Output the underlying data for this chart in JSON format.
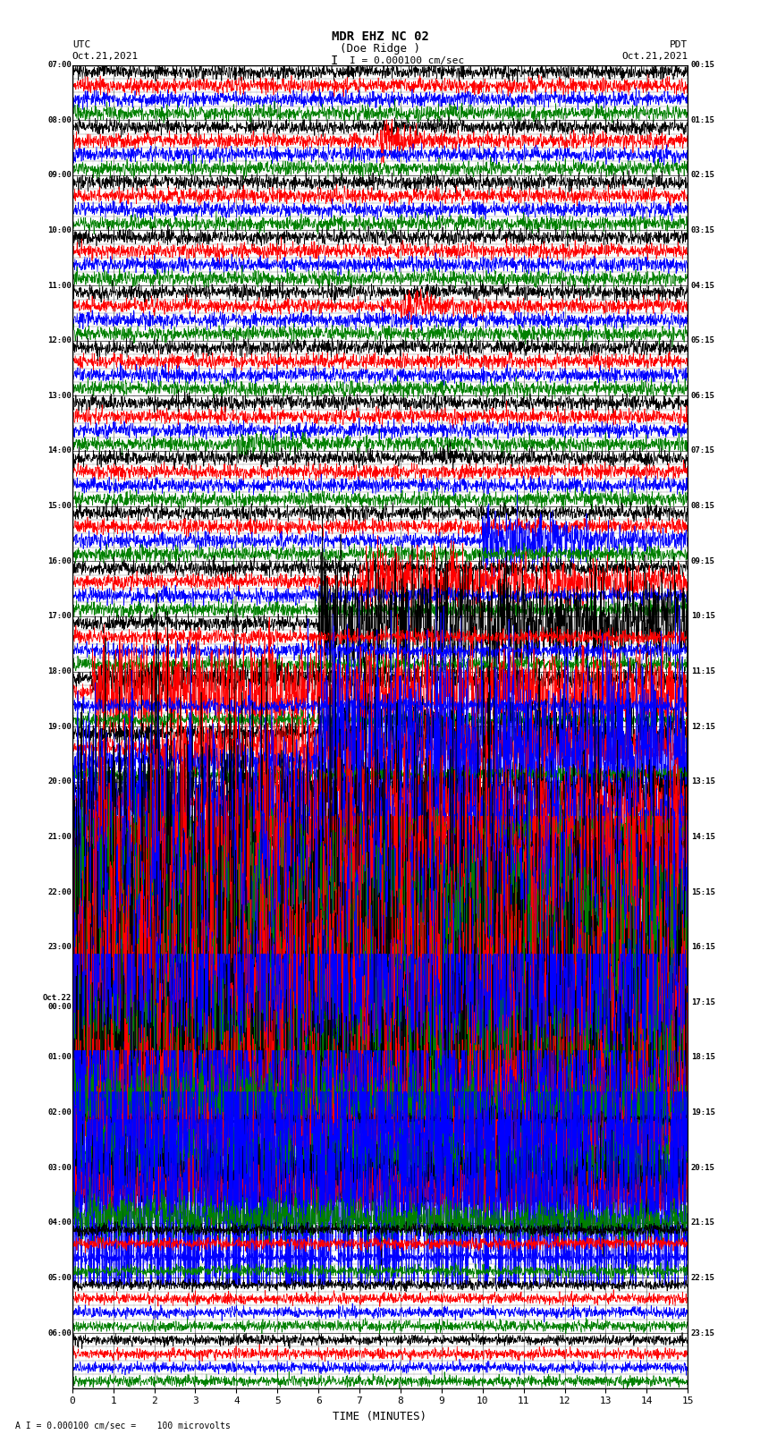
{
  "title_line1": "MDR EHZ NC 02",
  "title_line2": "(Doe Ridge )",
  "scale_label": "I = 0.000100 cm/sec",
  "left_header": "UTC",
  "right_header": "PDT",
  "left_date": "Oct.21,2021",
  "right_date": "Oct.21,2021",
  "xlabel": "TIME (MINUTES)",
  "bottom_note": "A I = 0.000100 cm/sec =    100 microvolts",
  "xlim": [
    0,
    15
  ],
  "xticks": [
    0,
    1,
    2,
    3,
    4,
    5,
    6,
    7,
    8,
    9,
    10,
    11,
    12,
    13,
    14,
    15
  ],
  "fig_width": 8.5,
  "fig_height": 16.13,
  "dpi": 100,
  "background_color": "#ffffff",
  "trace_colors": [
    "black",
    "red",
    "blue",
    "green"
  ],
  "n_hours": 24,
  "traces_per_hour": 4,
  "utc_labels": [
    "07:00",
    "08:00",
    "09:00",
    "10:00",
    "11:00",
    "12:00",
    "13:00",
    "14:00",
    "15:00",
    "16:00",
    "17:00",
    "18:00",
    "19:00",
    "20:00",
    "21:00",
    "22:00",
    "23:00",
    "Oct.22\n00:00",
    "01:00",
    "02:00",
    "03:00",
    "04:00",
    "05:00",
    "06:00"
  ],
  "pdt_labels": [
    "00:15",
    "01:15",
    "02:15",
    "03:15",
    "04:15",
    "05:15",
    "06:15",
    "07:15",
    "08:15",
    "09:15",
    "10:15",
    "11:15",
    "12:15",
    "13:15",
    "14:15",
    "15:15",
    "16:15",
    "17:15",
    "18:15",
    "19:15",
    "20:15",
    "21:15",
    "22:15",
    "23:15"
  ]
}
